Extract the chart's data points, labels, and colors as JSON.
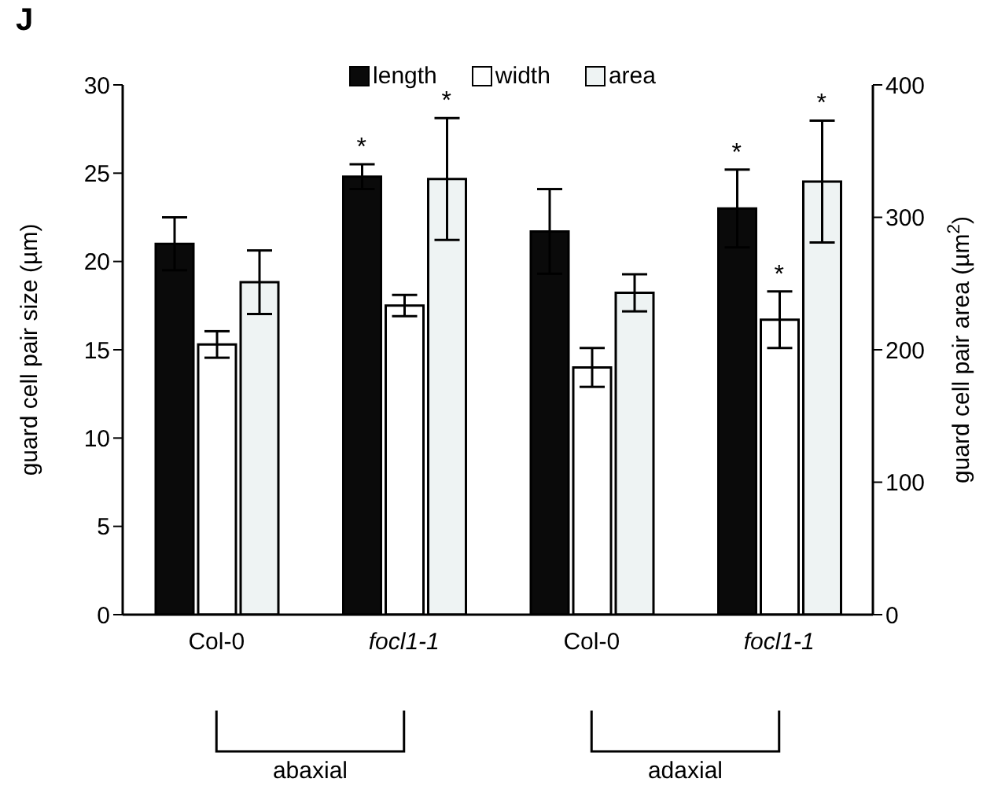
{
  "chart_data": {
    "type": "bar",
    "title": "J",
    "categories": [
      "Col-0",
      "focl1-1",
      "Col-0",
      "focl1-1"
    ],
    "series": [
      {
        "name": "length",
        "color": "#0a0a0a",
        "values": [
          21.0,
          24.8,
          21.7,
          23.0
        ],
        "errors": [
          1.5,
          0.7,
          2.4,
          2.2
        ]
      },
      {
        "name": "width",
        "color": "#ffffff",
        "values": [
          15.3,
          17.5,
          14.0,
          16.7
        ],
        "errors": [
          0.75,
          0.6,
          1.1,
          1.6
        ]
      },
      {
        "name": "area",
        "color": "#eef3f3",
        "values": [
          251,
          329,
          243,
          327
        ],
        "errors": [
          24,
          46,
          14,
          46
        ],
        "axis": "y2"
      }
    ],
    "ylabel": "guard cell pair size (µm)",
    "y2label": "guard cell pair area (µm$^{2}$)",
    "ylim": [
      0,
      30
    ],
    "yticks": [
      0,
      5,
      10,
      15,
      20,
      25,
      30
    ],
    "y2lim": [
      0,
      400
    ],
    "y2ticks": [
      0,
      100,
      200,
      300,
      400
    ],
    "legend": "top",
    "annotations": [
      "*",
      "*",
      "*",
      "*",
      "*",
      "abaxial",
      "adaxial"
    ]
  }
}
